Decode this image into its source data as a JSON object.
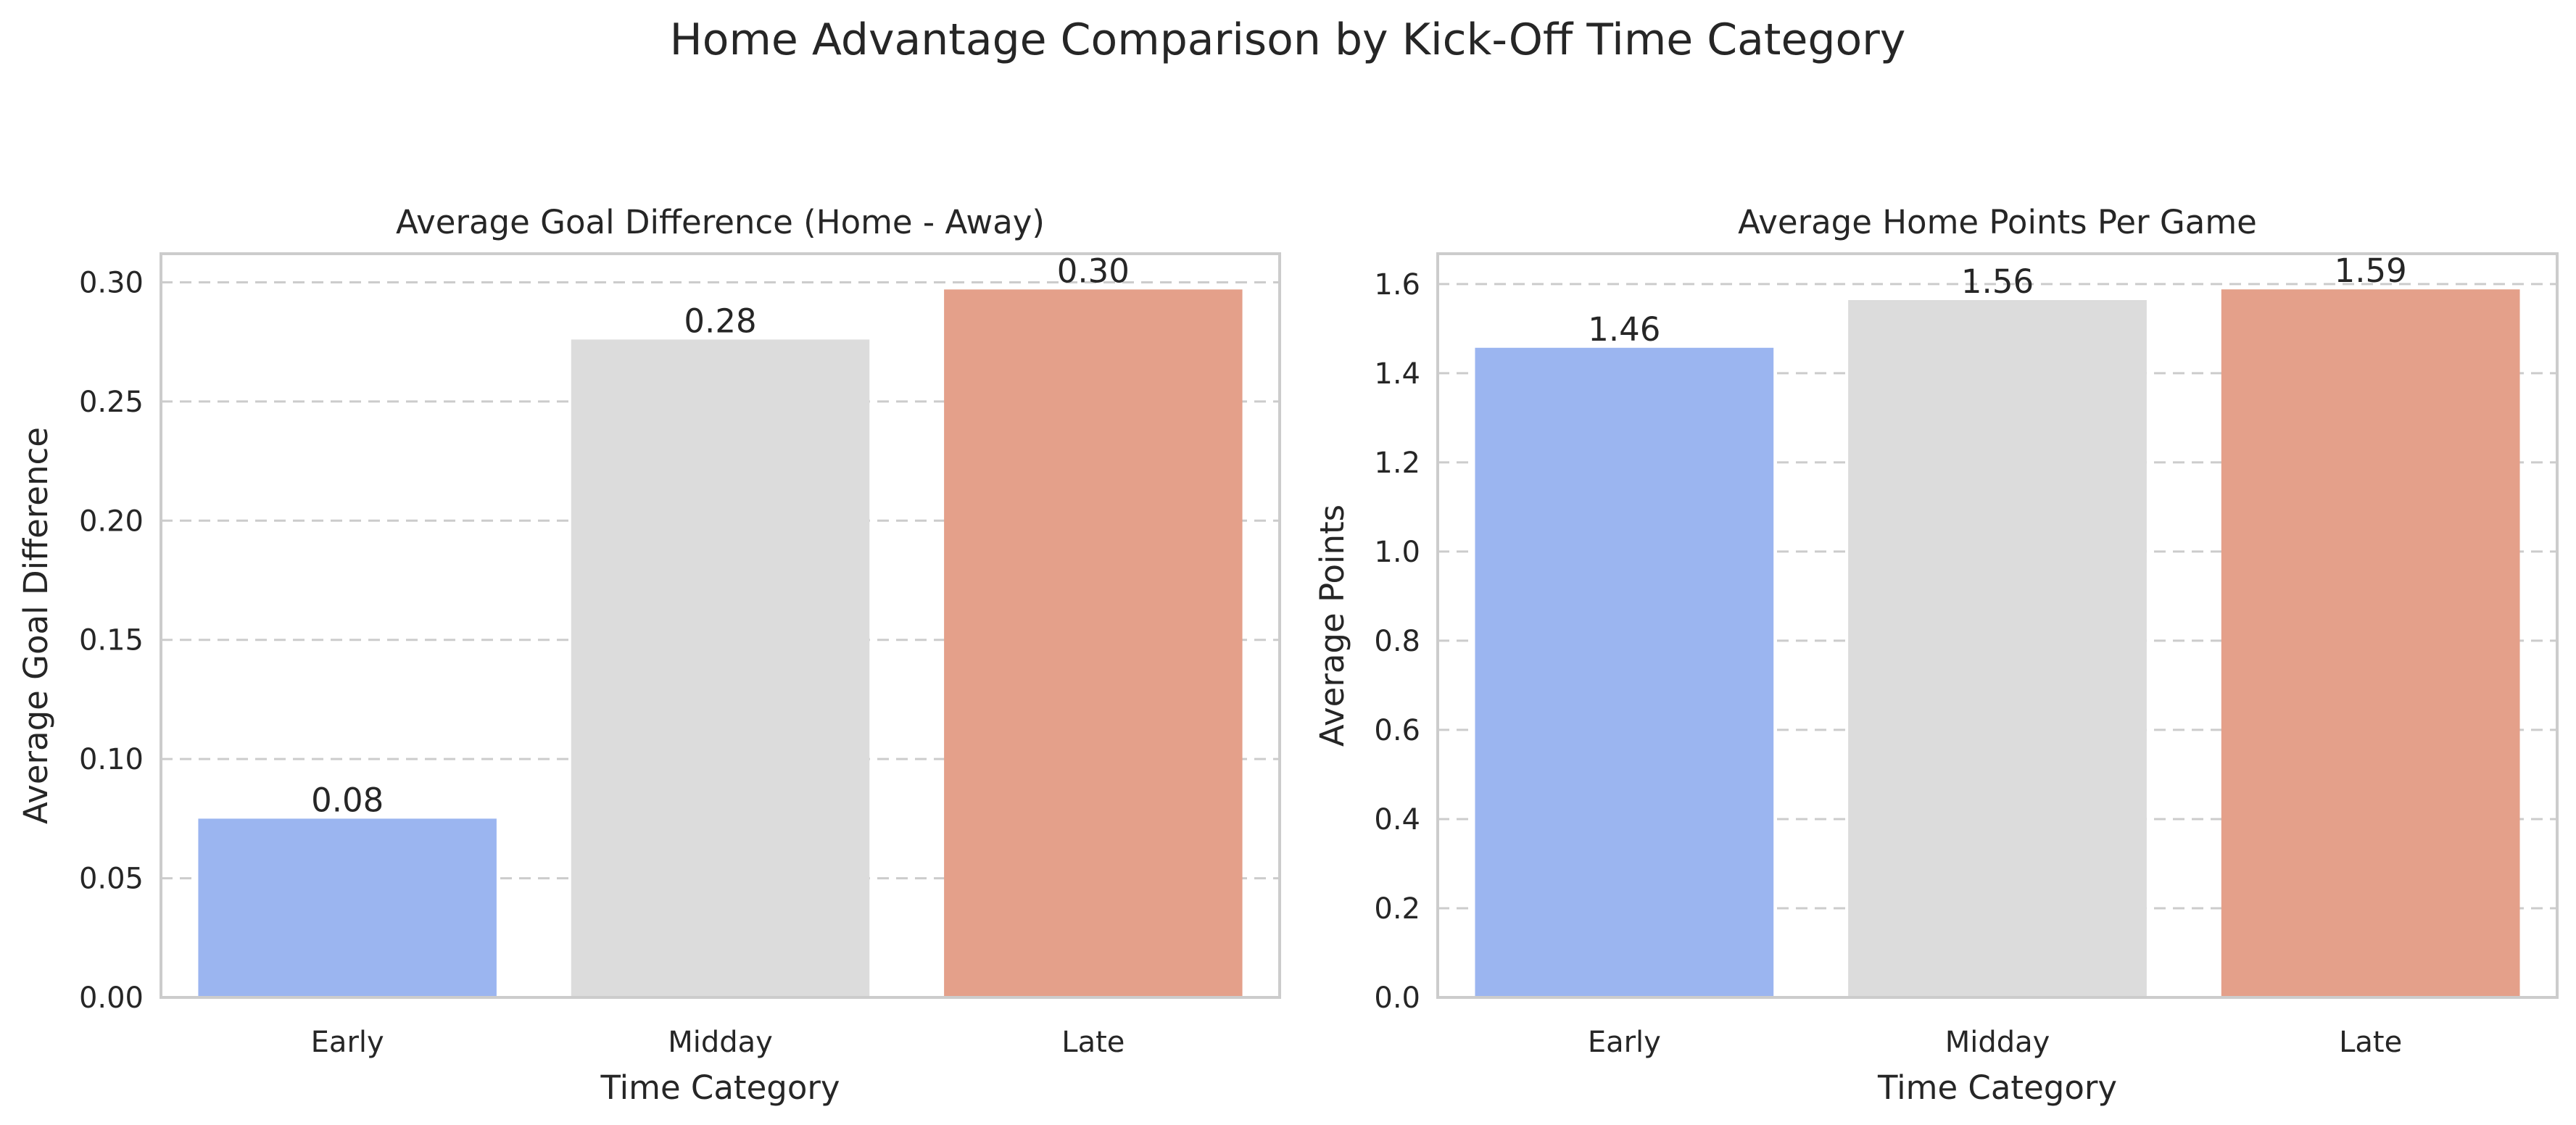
{
  "figure": {
    "title": "Home Advantage Comparison by Kick-Off Time Category"
  },
  "chart_data": [
    {
      "type": "bar",
      "title": "Average Goal Difference (Home - Away)",
      "xlabel": "Time Category",
      "ylabel": "Average Goal Difference",
      "categories": [
        "Early",
        "Midday",
        "Late"
      ],
      "values": [
        0.075,
        0.276,
        0.297
      ],
      "value_labels": [
        "0.08",
        "0.28",
        "0.30"
      ],
      "colors": [
        "#9bb5f0",
        "#dcdcdc",
        "#e4a08a"
      ],
      "ylim": [
        0,
        0.312
      ],
      "yticks": [
        0,
        0.05,
        0.1,
        0.15,
        0.2,
        0.25,
        0.3
      ],
      "ytick_labels": [
        "0.00",
        "0.05",
        "0.10",
        "0.15",
        "0.20",
        "0.25",
        "0.30"
      ],
      "grid": "y dashed"
    },
    {
      "type": "bar",
      "title": "Average Home Points Per Game",
      "xlabel": "Time Category",
      "ylabel": "Average Points",
      "categories": [
        "Early",
        "Midday",
        "Late"
      ],
      "values": [
        1.457,
        1.564,
        1.588
      ],
      "value_labels": [
        "1.46",
        "1.56",
        "1.59"
      ],
      "colors": [
        "#9bb5f0",
        "#dcdcdc",
        "#e4a08a"
      ],
      "ylim": [
        0,
        1.668
      ],
      "yticks": [
        0,
        0.2,
        0.4,
        0.6,
        0.8,
        1.0,
        1.2,
        1.4,
        1.6
      ],
      "ytick_labels": [
        "0.0",
        "0.2",
        "0.4",
        "0.6",
        "0.8",
        "1.0",
        "1.2",
        "1.4",
        "1.6"
      ],
      "grid": "y dashed"
    }
  ]
}
